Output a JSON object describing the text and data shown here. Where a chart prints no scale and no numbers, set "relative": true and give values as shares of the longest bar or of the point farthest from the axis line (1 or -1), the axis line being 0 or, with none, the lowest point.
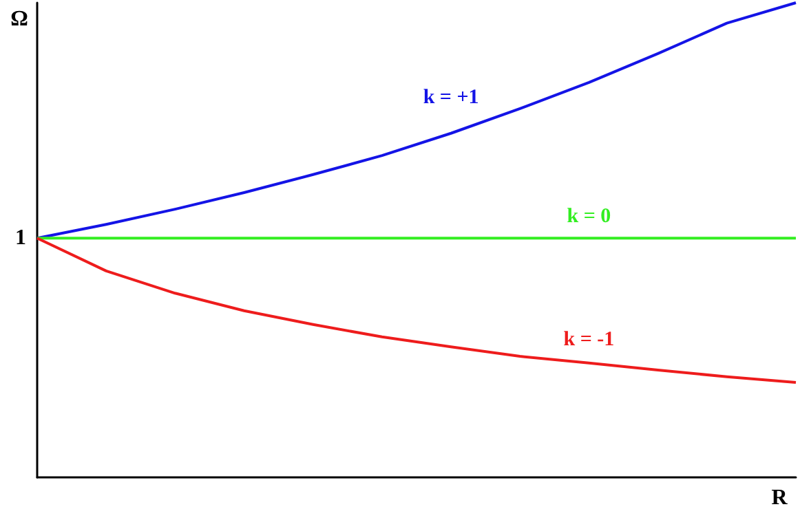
{
  "chart_data": {
    "type": "line",
    "relative": true,
    "xlabel": "R",
    "ylabel": "Ω",
    "marker": "none",
    "grid": false,
    "annotations": [
      "1"
    ],
    "categories": [
      null,
      null,
      null,
      null,
      null,
      null,
      null,
      null,
      null,
      null,
      null,
      null
    ],
    "series": [
      {
        "name": "k = +1",
        "color": "#1414e6",
        "values": [
          0.504,
          0.533,
          0.565,
          0.6,
          0.638,
          0.678,
          0.725,
          0.777,
          0.832,
          0.893,
          0.957,
          1.0
        ]
      },
      {
        "name": "k = 0",
        "color": "#33ee22",
        "values": [
          0.504,
          0.504,
          0.504,
          0.504,
          0.504,
          0.504,
          0.504,
          0.504,
          0.504,
          0.504,
          0.504,
          0.504
        ]
      },
      {
        "name": "k = -1",
        "color": "#ee1c1c",
        "values": [
          0.504,
          0.435,
          0.388,
          0.351,
          0.322,
          0.296,
          0.275,
          0.255,
          0.241,
          0.226,
          0.212,
          0.2
        ]
      }
    ]
  }
}
